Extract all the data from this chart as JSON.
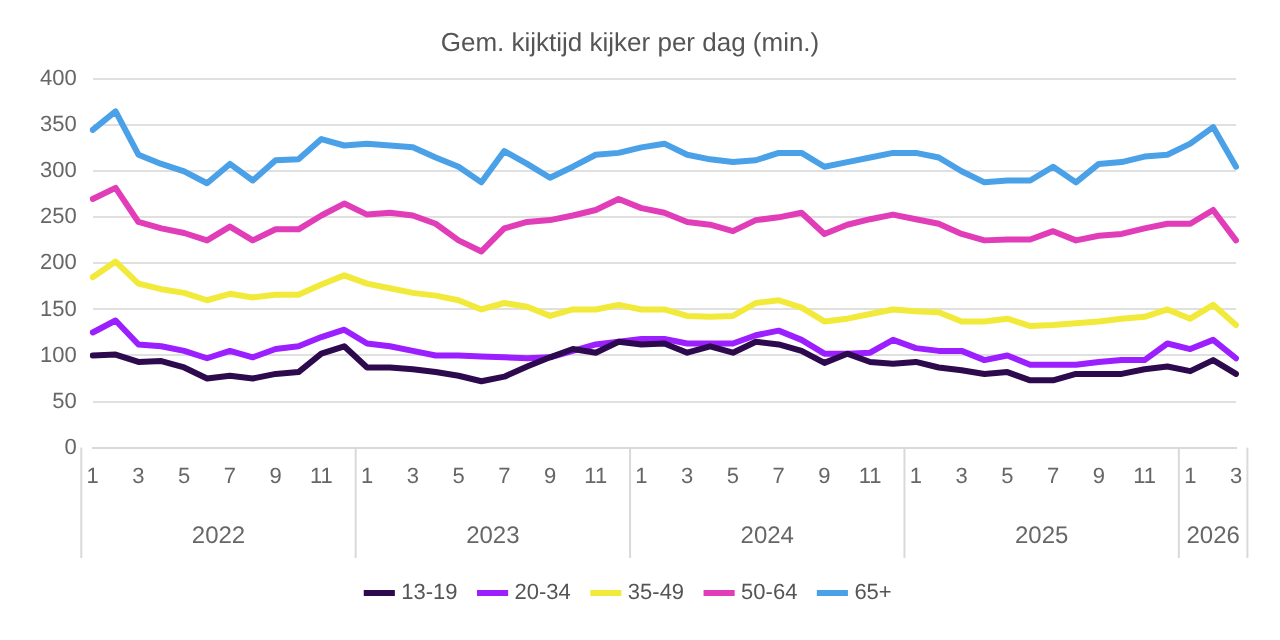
{
  "chart_data": {
    "type": "line",
    "title": "Gem. kijktijd kijker per dag (min.)",
    "categories": [
      "1",
      null,
      "3",
      null,
      "5",
      null,
      "7",
      null,
      "9",
      null,
      "11",
      null,
      "1",
      null,
      "3",
      null,
      "5",
      null,
      "7",
      null,
      "9",
      null,
      "11",
      null,
      "1",
      null,
      "3",
      null,
      "5",
      null,
      "7",
      null,
      "9",
      null,
      "11",
      null,
      "1",
      null,
      "3",
      null,
      "5",
      null,
      "7",
      null,
      "9",
      null,
      "11",
      null,
      "1",
      null,
      "3"
    ],
    "annotations": [
      "2022",
      "2023",
      "2024",
      "2025",
      "2026"
    ],
    "series": [
      {
        "name": "13-19",
        "color": "#2d0a4e",
        "values": [
          100,
          101,
          93,
          94,
          87,
          75,
          78,
          75,
          80,
          82,
          102,
          110,
          87,
          87,
          85,
          82,
          78,
          72,
          77,
          88,
          98,
          107,
          103,
          115,
          112,
          113,
          103,
          110,
          103,
          115,
          112,
          105,
          92,
          102,
          93,
          91,
          93,
          87,
          84,
          80,
          82,
          73,
          73,
          80,
          80,
          80,
          85,
          88,
          83,
          95,
          80
        ]
      },
      {
        "name": "20-34",
        "color": "#9b1fff",
        "values": [
          125,
          138,
          112,
          110,
          105,
          97,
          105,
          98,
          107,
          110,
          120,
          128,
          113,
          110,
          105,
          100,
          100,
          99,
          98,
          97,
          98,
          105,
          112,
          115,
          118,
          118,
          113,
          113,
          113,
          122,
          127,
          117,
          102,
          102,
          103,
          117,
          108,
          105,
          105,
          95,
          100,
          90,
          90,
          90,
          93,
          95,
          95,
          113,
          107,
          117,
          97
        ]
      },
      {
        "name": "35-49",
        "color": "#f2ea3a",
        "values": [
          185,
          202,
          178,
          172,
          168,
          160,
          167,
          163,
          166,
          166,
          177,
          187,
          178,
          173,
          168,
          165,
          160,
          150,
          157,
          153,
          143,
          150,
          150,
          155,
          150,
          150,
          143,
          142,
          143,
          157,
          160,
          152,
          137,
          140,
          145,
          150,
          148,
          147,
          137,
          137,
          140,
          132,
          133,
          135,
          137,
          140,
          142,
          150,
          140,
          155,
          133
        ]
      },
      {
        "name": "50-64",
        "color": "#e23db9",
        "values": [
          270,
          282,
          245,
          238,
          233,
          225,
          240,
          225,
          237,
          237,
          252,
          265,
          253,
          255,
          252,
          243,
          225,
          213,
          238,
          245,
          247,
          252,
          258,
          270,
          260,
          255,
          245,
          242,
          235,
          247,
          250,
          255,
          232,
          242,
          248,
          253,
          248,
          243,
          232,
          225,
          226,
          226,
          235,
          225,
          230,
          232,
          238,
          243,
          243,
          258,
          225
        ]
      },
      {
        "name": "65+",
        "color": "#4aa1e8",
        "values": [
          345,
          365,
          318,
          308,
          300,
          287,
          308,
          290,
          312,
          313,
          335,
          328,
          330,
          328,
          326,
          315,
          305,
          288,
          322,
          308,
          293,
          305,
          318,
          320,
          326,
          330,
          318,
          313,
          310,
          312,
          320,
          320,
          305,
          310,
          315,
          320,
          320,
          315,
          300,
          288,
          290,
          290,
          305,
          288,
          308,
          310,
          316,
          318,
          330,
          348,
          305
        ]
      }
    ],
    "ylim": [
      0,
      400
    ],
    "yticks": [
      0,
      50,
      100,
      150,
      200,
      250,
      300,
      350,
      400
    ],
    "grid": "y",
    "legend": "bottom",
    "marker": "none",
    "line_style": "solid"
  }
}
